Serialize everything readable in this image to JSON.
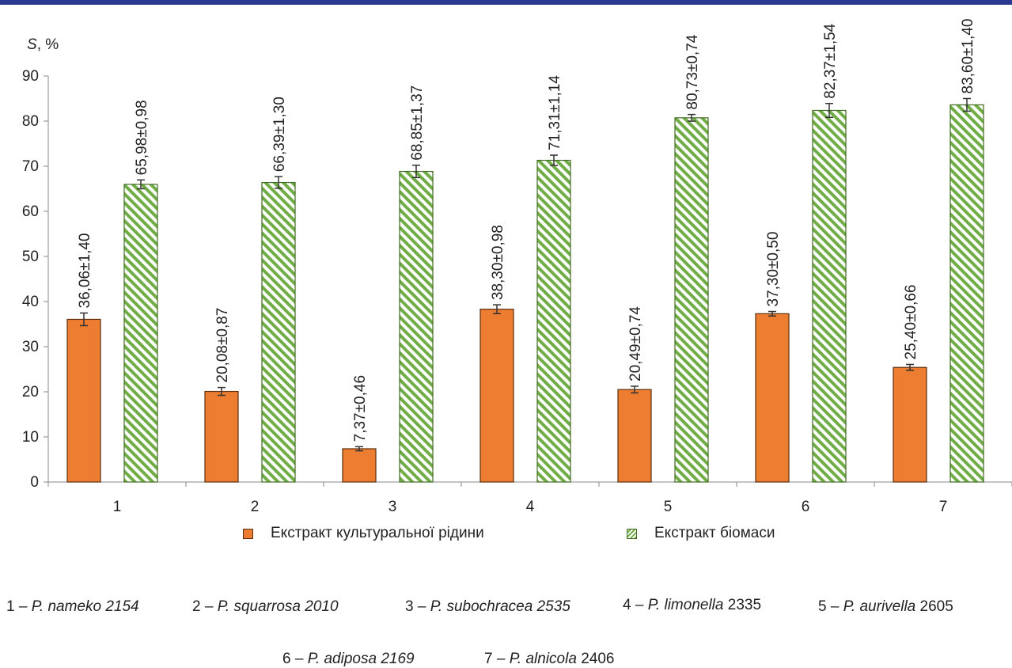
{
  "colors": {
    "top_bar": "#2b3990",
    "bar_culture": "#ed7d31",
    "bar_culture_border": "#5a2e0e",
    "bar_biomass_hatch": "#70ad47",
    "axis": "#888888"
  },
  "chart_data": {
    "type": "bar",
    "y_axis_label_var": "S",
    "y_axis_label_unit": ", %",
    "ylim": [
      0,
      90
    ],
    "yticks": [
      0,
      10,
      20,
      30,
      40,
      50,
      60,
      70,
      80,
      90
    ],
    "categories": [
      "1",
      "2",
      "3",
      "4",
      "5",
      "6",
      "7"
    ],
    "series": [
      {
        "name": "Екстракт культуральної рідини",
        "values": [
          36.06,
          20.08,
          7.37,
          38.3,
          20.49,
          37.3,
          25.4
        ],
        "errors": [
          1.4,
          0.87,
          0.46,
          0.98,
          0.74,
          0.5,
          0.66
        ],
        "labels": [
          "36,06±1,40",
          "20,08±0,87",
          "7,37±0,46",
          "38,30±0,98",
          "20,49±0,74",
          "37,30±0,50",
          "25,40±0,66"
        ]
      },
      {
        "name": "Екстракт біомаси",
        "values": [
          65.98,
          66.39,
          68.85,
          71.31,
          80.73,
          82.37,
          83.6
        ],
        "errors": [
          0.98,
          1.3,
          1.37,
          1.14,
          0.74,
          1.54,
          1.4
        ],
        "labels": [
          "65,98±0,98",
          "66,39±1,30",
          "68,85±1,37",
          "71,31±1,14",
          "80,73±0,74",
          "82,37±1,54",
          "83,60±1,40"
        ]
      }
    ],
    "legend_position": "bottom",
    "grid": false
  },
  "notes": [
    {
      "prefix": "1 – ",
      "italic": "P. nameko 2154",
      "suffix": ""
    },
    {
      "prefix": "2 – ",
      "italic": "P. squarrosa 2010",
      "suffix": ""
    },
    {
      "prefix": "3 – ",
      "italic": "P. subochracea 2535",
      "suffix": ""
    },
    {
      "prefix": "4 – ",
      "italic": "P. limonella",
      "suffix": " 2335"
    },
    {
      "prefix": "5 – ",
      "italic": "P. aurivella",
      "suffix": " 2605"
    },
    {
      "prefix": "6 – ",
      "italic": "P. adiposa 2169",
      "suffix": ""
    },
    {
      "prefix": "7 – ",
      "italic": "P. alnicola",
      "suffix": " 2406"
    }
  ]
}
